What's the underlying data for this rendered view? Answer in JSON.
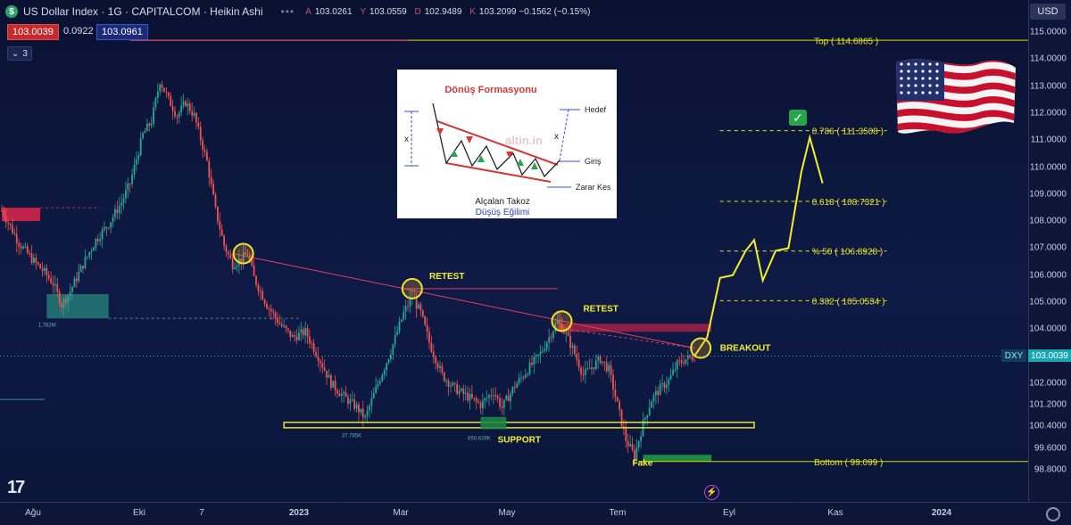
{
  "header": {
    "title": "US Dollar Index · 1G · CAPITALCOM · Heikin Ashi",
    "ohlc": [
      {
        "k": "A",
        "v": "103.0261"
      },
      {
        "k": "Y",
        "v": "103.0559"
      },
      {
        "k": "D",
        "v": "102.9489"
      },
      {
        "k": "K",
        "v": "103.2099 −0.1562 (−0.15%)"
      }
    ],
    "sell_price": "103.0039",
    "spread": "0.0922",
    "buy_price": "103.0961",
    "indicators_count": "3",
    "currency": "USD"
  },
  "icons": {
    "symbol": "dollar-icon",
    "menu": "more-dots-icon",
    "collapse": "chevron-down-icon",
    "settings": "gear-icon",
    "logo": "tradingview-logo-icon",
    "alert": "lightning-icon",
    "target_hit": "check-icon",
    "flag": "usa-flag-icon"
  },
  "y_axis": {
    "ticks": [
      "115.0000",
      "114.0000",
      "113.0000",
      "112.0000",
      "111.0000",
      "110.0000",
      "109.0000",
      "108.0000",
      "107.0000",
      "106.0000",
      "105.0000",
      "104.0000",
      "103.0000",
      "102.0000",
      "101.2000",
      "100.4000",
      "99.6000",
      "98.8000"
    ],
    "last_price": "103.0039",
    "last_symbol": "DXY"
  },
  "x_axis": {
    "ticks": [
      "Ağu",
      "Eki",
      "7",
      "2023",
      "Mar",
      "May",
      "Tem",
      "Eyl",
      "Kas",
      "2024"
    ]
  },
  "annotations": {
    "retest_1": "RETEST",
    "retest_2": "RETEST",
    "breakout": "BREAKOUT",
    "support": "SUPPORT",
    "fake": "Fake",
    "vol_1": "1.782M",
    "vol_2": "37.785K",
    "vol_3": "850.626K"
  },
  "fib_levels": [
    {
      "label": "Top ( 114.6865 )",
      "value": 114.6865
    },
    {
      "label": "0.786 ( 111.3508 )",
      "value": 111.3508
    },
    {
      "label": "0.618 ( 108.7321 )",
      "value": 108.7321
    },
    {
      "label": "% 50 ( 106.8928 )",
      "value": 106.8928
    },
    {
      "label": "0.382 ( 105.0534 )",
      "value": 105.0534
    },
    {
      "label": "Bottom ( 99.099 )",
      "value": 99.099
    }
  ],
  "inset": {
    "title": "Dönüş Formasyonu",
    "target": "Hedef",
    "entry": "Giriş",
    "stop": "Zarar Kes",
    "x_left": "x",
    "x_right": "x",
    "pattern_name": "Alçalan Takoz",
    "trend": "Düşüş Eğilimi",
    "watermark": "altin.in"
  },
  "chart_data": {
    "type": "candlestick",
    "title": "US Dollar Index · 1G · CAPITALCOM · Heikin Ashi",
    "ylim": [
      98.7,
      115.2
    ],
    "x_index_range": [
      0,
      484
    ],
    "up_color": "#26a69a",
    "down_color": "#ef5350",
    "price_path": [
      [
        0,
        108.4
      ],
      [
        8,
        107.2
      ],
      [
        14,
        106.6
      ],
      [
        20,
        106.1
      ],
      [
        24,
        105.7
      ],
      [
        28,
        104.9
      ],
      [
        32,
        105.4
      ],
      [
        38,
        106.4
      ],
      [
        44,
        107.3
      ],
      [
        50,
        107.9
      ],
      [
        56,
        108.7
      ],
      [
        60,
        109.4
      ],
      [
        66,
        111.2
      ],
      [
        70,
        111.7
      ],
      [
        74,
        113.2
      ],
      [
        78,
        112.5
      ],
      [
        82,
        111.9
      ],
      [
        86,
        112.4
      ],
      [
        90,
        111.9
      ],
      [
        96,
        110.2
      ],
      [
        100,
        108.4
      ],
      [
        104,
        107.1
      ],
      [
        108,
        106.4
      ],
      [
        112,
        106.6
      ],
      [
        115,
        106.8
      ],
      [
        118,
        105.9
      ],
      [
        124,
        104.9
      ],
      [
        130,
        104.2
      ],
      [
        136,
        103.7
      ],
      [
        142,
        103.9
      ],
      [
        148,
        103.0
      ],
      [
        154,
        102.0
      ],
      [
        160,
        101.5
      ],
      [
        166,
        101.1
      ],
      [
        170,
        100.7
      ],
      [
        176,
        102.0
      ],
      [
        182,
        103.2
      ],
      [
        188,
        104.6
      ],
      [
        192,
        105.2
      ],
      [
        196,
        104.6
      ],
      [
        200,
        103.5
      ],
      [
        206,
        102.3
      ],
      [
        212,
        101.8
      ],
      [
        218,
        101.5
      ],
      [
        224,
        101.2
      ],
      [
        230,
        101.7
      ],
      [
        234,
        101.1
      ],
      [
        240,
        101.9
      ],
      [
        246,
        102.5
      ],
      [
        252,
        103.1
      ],
      [
        256,
        103.7
      ],
      [
        260,
        104.3
      ],
      [
        264,
        103.8
      ],
      [
        268,
        103.1
      ],
      [
        272,
        102.3
      ],
      [
        276,
        102.6
      ],
      [
        280,
        102.9
      ],
      [
        284,
        102.5
      ],
      [
        288,
        101.2
      ],
      [
        292,
        99.9
      ],
      [
        296,
        99.3
      ],
      [
        300,
        100.5
      ],
      [
        304,
        101.4
      ],
      [
        308,
        101.8
      ],
      [
        312,
        102.1
      ],
      [
        316,
        102.7
      ],
      [
        320,
        102.9
      ],
      [
        324,
        103.0
      ]
    ],
    "projection": [
      [
        324,
        103.0
      ],
      [
        330,
        103.7
      ],
      [
        336,
        105.9
      ],
      [
        342,
        106.0
      ],
      [
        348,
        106.9
      ],
      [
        352,
        107.3
      ],
      [
        356,
        105.8
      ],
      [
        362,
        106.9
      ],
      [
        368,
        107.0
      ],
      [
        374,
        109.8
      ],
      [
        378,
        111.1
      ],
      [
        384,
        109.4
      ]
    ],
    "wedge_upper": {
      "from": [
        108,
        106.8
      ],
      "to": [
        324,
        103.3
      ]
    },
    "retest_line": [
      [
        188,
        105.5
      ],
      [
        260,
        105.5
      ]
    ],
    "resistance_zone": {
      "x": [
        260,
        332
      ],
      "y": [
        103.9,
        104.2
      ]
    },
    "supply_zone": {
      "x": [
        0,
        18
      ],
      "y": [
        108.0,
        108.5
      ]
    },
    "demand_zone": {
      "x": [
        21,
        50
      ],
      "y": [
        104.4,
        105.3
      ]
    },
    "green_zone": {
      "x": [
        300,
        332
      ],
      "y": [
        99.1,
        99.35
      ]
    },
    "support_box": {
      "x": [
        132,
        352
      ],
      "y": [
        100.35,
        100.55
      ]
    },
    "markers": [
      {
        "name": "wedge-touch-1",
        "x": 113,
        "y": 106.8
      },
      {
        "name": "retest-1",
        "x": 192,
        "y": 105.5
      },
      {
        "name": "retest-2",
        "x": 262,
        "y": 104.3
      },
      {
        "name": "breakout",
        "x": 327,
        "y": 103.3
      }
    ],
    "current_price": 103.0039
  }
}
